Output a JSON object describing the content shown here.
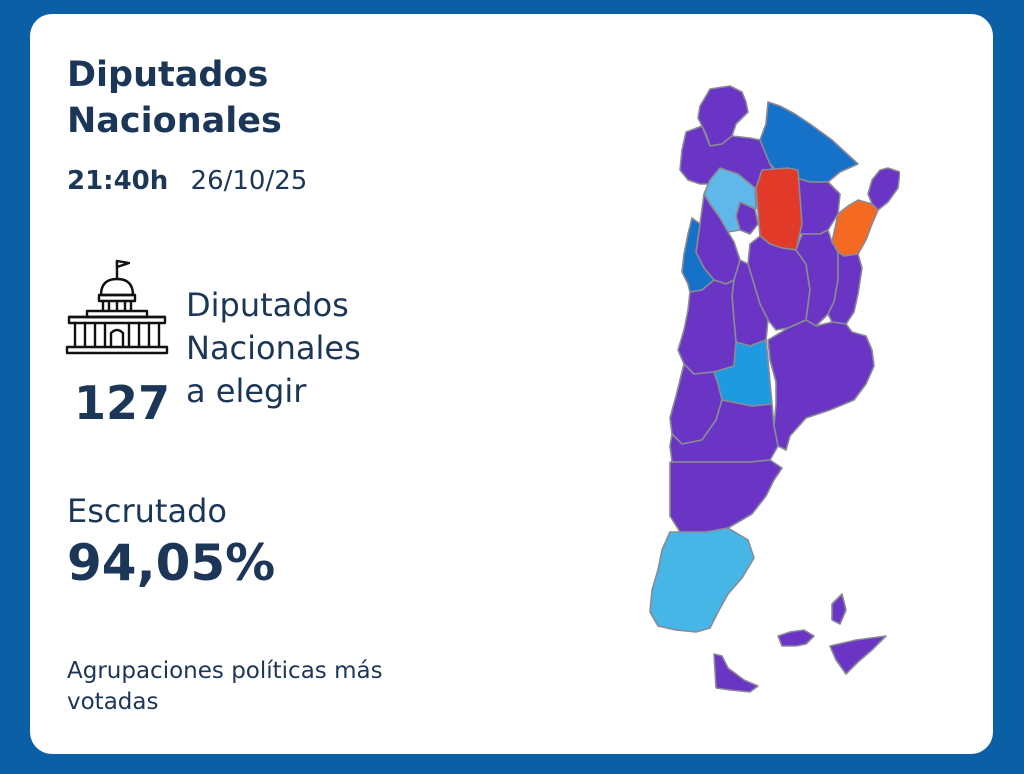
{
  "header": {
    "title_line1": "Diputados",
    "title_line2": "Nacionales",
    "time": "21:40h",
    "date": "26/10/25"
  },
  "seats": {
    "label_line1": "Diputados",
    "label_line2": "Nacionales",
    "label_line3": "a elegir",
    "count": "127"
  },
  "scrutiny": {
    "label": "Escrutado",
    "value": "94,05%"
  },
  "parties": {
    "label": "Agrupaciones políticas más votadas"
  },
  "map": {
    "icon": "argentina-provinces-map",
    "colors": {
      "purple": "#6a35c4",
      "dark_blue": "#1572c8",
      "light_blue": "#45b6e6",
      "sky_blue": "#60b7ea",
      "mid_blue": "#1e9be0",
      "red": "#e23a28",
      "orange": "#f46a22"
    }
  }
}
